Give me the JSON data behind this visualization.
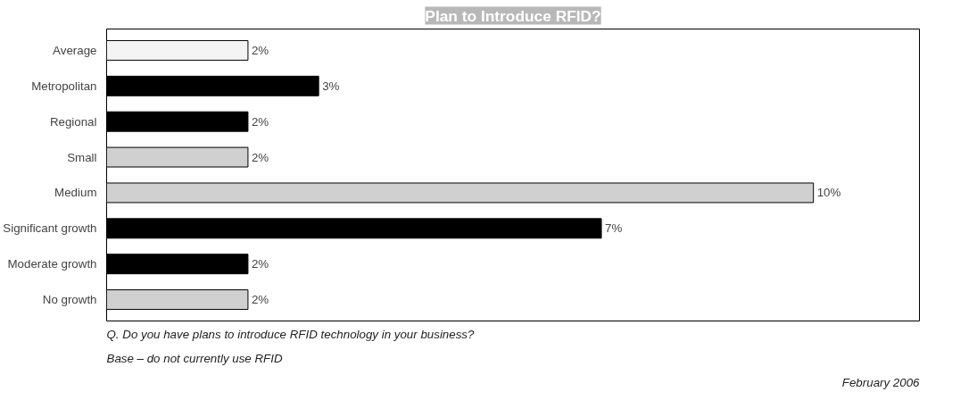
{
  "chart_data": {
    "type": "bar",
    "orientation": "horizontal",
    "title": "Plan to Introduce RFID?",
    "categories": [
      "Average",
      "Metropolitan",
      "Regional",
      "Small",
      "Medium",
      "Significant growth",
      "Moderate growth",
      "No growth"
    ],
    "values": [
      2,
      3,
      2,
      2,
      10,
      7,
      2,
      2
    ],
    "colors": [
      "#f4f4f4",
      "#000000",
      "#000000",
      "#d0d0d0",
      "#d0d0d0",
      "#000000",
      "#000000",
      "#d0d0d0"
    ],
    "value_labels": [
      "2%",
      "3%",
      "2%",
      "2%",
      "10%",
      "7%",
      "2%",
      "2%"
    ],
    "xlim": [
      0,
      11.5
    ],
    "tick_labels": "y",
    "grid": false,
    "annotations": [
      "Q. Do you have plans to introduce RFID technology in your business?",
      "Base – do not currently use RFID",
      "February 2006"
    ]
  }
}
